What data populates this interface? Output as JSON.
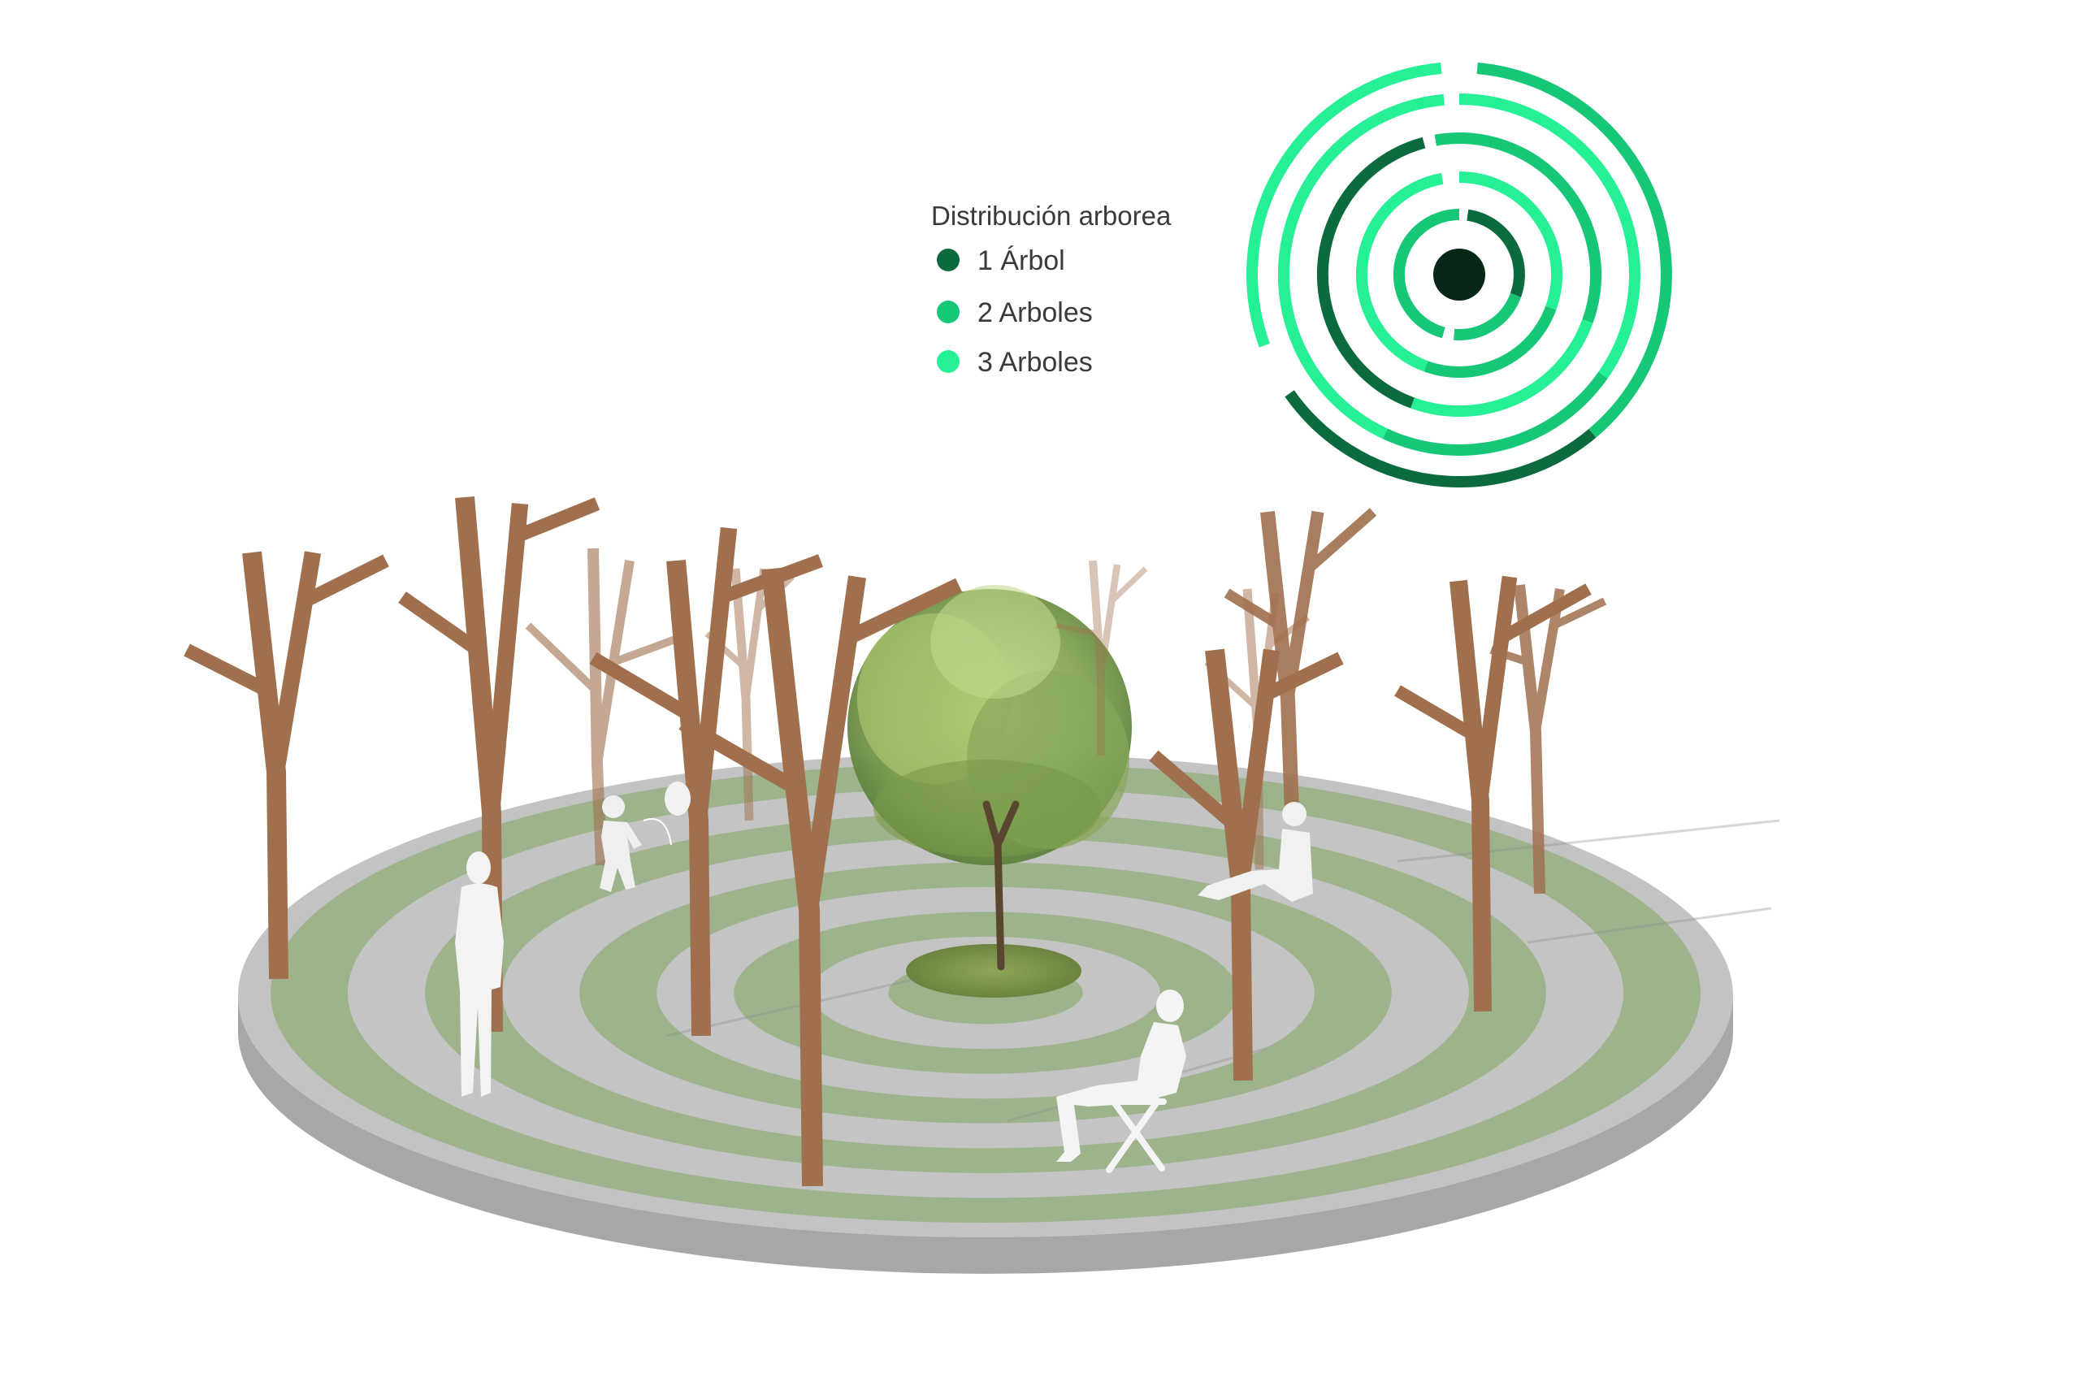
{
  "legend": {
    "title": "Distribución arborea",
    "items": [
      {
        "label": "1 Árbol",
        "color": "#0b6b3e"
      },
      {
        "label": "2 Arboles",
        "color": "#15c777"
      },
      {
        "label": "3 Arboles",
        "color": "#25f096"
      }
    ]
  },
  "palette": {
    "ground": "#bfbfbf",
    "ground_edge": "#a4a4a4",
    "grass": "#9db38c",
    "trunk": "#a0704e",
    "silhouette": "#f3f3f3",
    "symbol_center": "#062616"
  },
  "figures": [
    {
      "icon": "standing-person-icon"
    },
    {
      "icon": "child-with-balloon-icon"
    },
    {
      "icon": "seated-person-icon"
    },
    {
      "icon": "person-on-folding-chair-icon"
    }
  ],
  "symbol": {
    "icon": "tree-distribution-rings-icon"
  }
}
